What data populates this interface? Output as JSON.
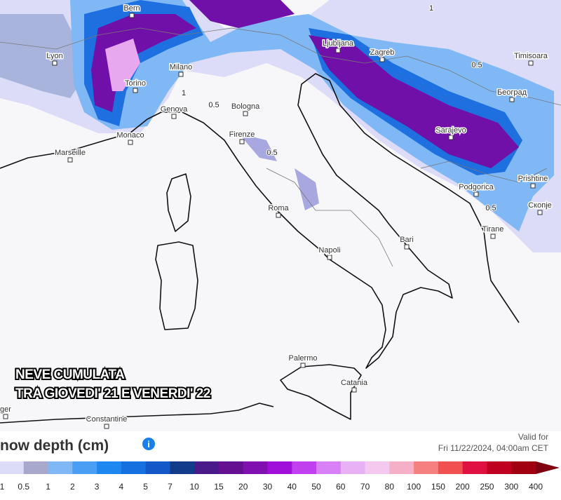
{
  "map": {
    "overlay_title": [
      "NEVE CUMULATA",
      "TRA GIOVEDI' 21 E VENERDI' 22"
    ],
    "places": [
      "Bern",
      "Lyon",
      "Milano",
      "Torino",
      "Genova",
      "Monaco",
      "Marseille",
      "Bologna",
      "Firenze",
      "Roma",
      "Napoli",
      "Bari",
      "Palermo",
      "Catania",
      "Ljubljana",
      "Zagreb",
      "Timisoara",
      "Београд",
      "Sarajevo",
      "Podgorica",
      "Prishtine",
      "Скопје",
      "Tirane",
      "Constantine",
      "ger"
    ],
    "contour_labels": [
      "1",
      "0.5",
      "0.5",
      "0.5",
      "0.5",
      "1"
    ]
  },
  "legend": {
    "title": "now depth (cm)",
    "valid_label": "Valid for",
    "valid_time": "Fri 11/22/2024, 04:00am CET",
    "ticks": [
      "1",
      "0.5",
      "1",
      "2",
      "3",
      "4",
      "5",
      "7",
      "10",
      "15",
      "20",
      "30",
      "40",
      "50",
      "60",
      "70",
      "80",
      "100",
      "150",
      "200",
      "250",
      "300",
      "400"
    ],
    "colors": [
      "#dcdcf8",
      "#a8a8cc",
      "#7fb8f5",
      "#4a9ff5",
      "#1e88f0",
      "#1670e0",
      "#1457c8",
      "#123c8a",
      "#4b1a8a",
      "#641090",
      "#8010b0",
      "#a010d8",
      "#c040f0",
      "#d880f5",
      "#e8b0f5",
      "#f5c8f0",
      "#f5b0c8",
      "#f58080",
      "#f05050",
      "#e01040",
      "#c00020",
      "#a00010"
    ],
    "arrow_color": "#800010"
  }
}
